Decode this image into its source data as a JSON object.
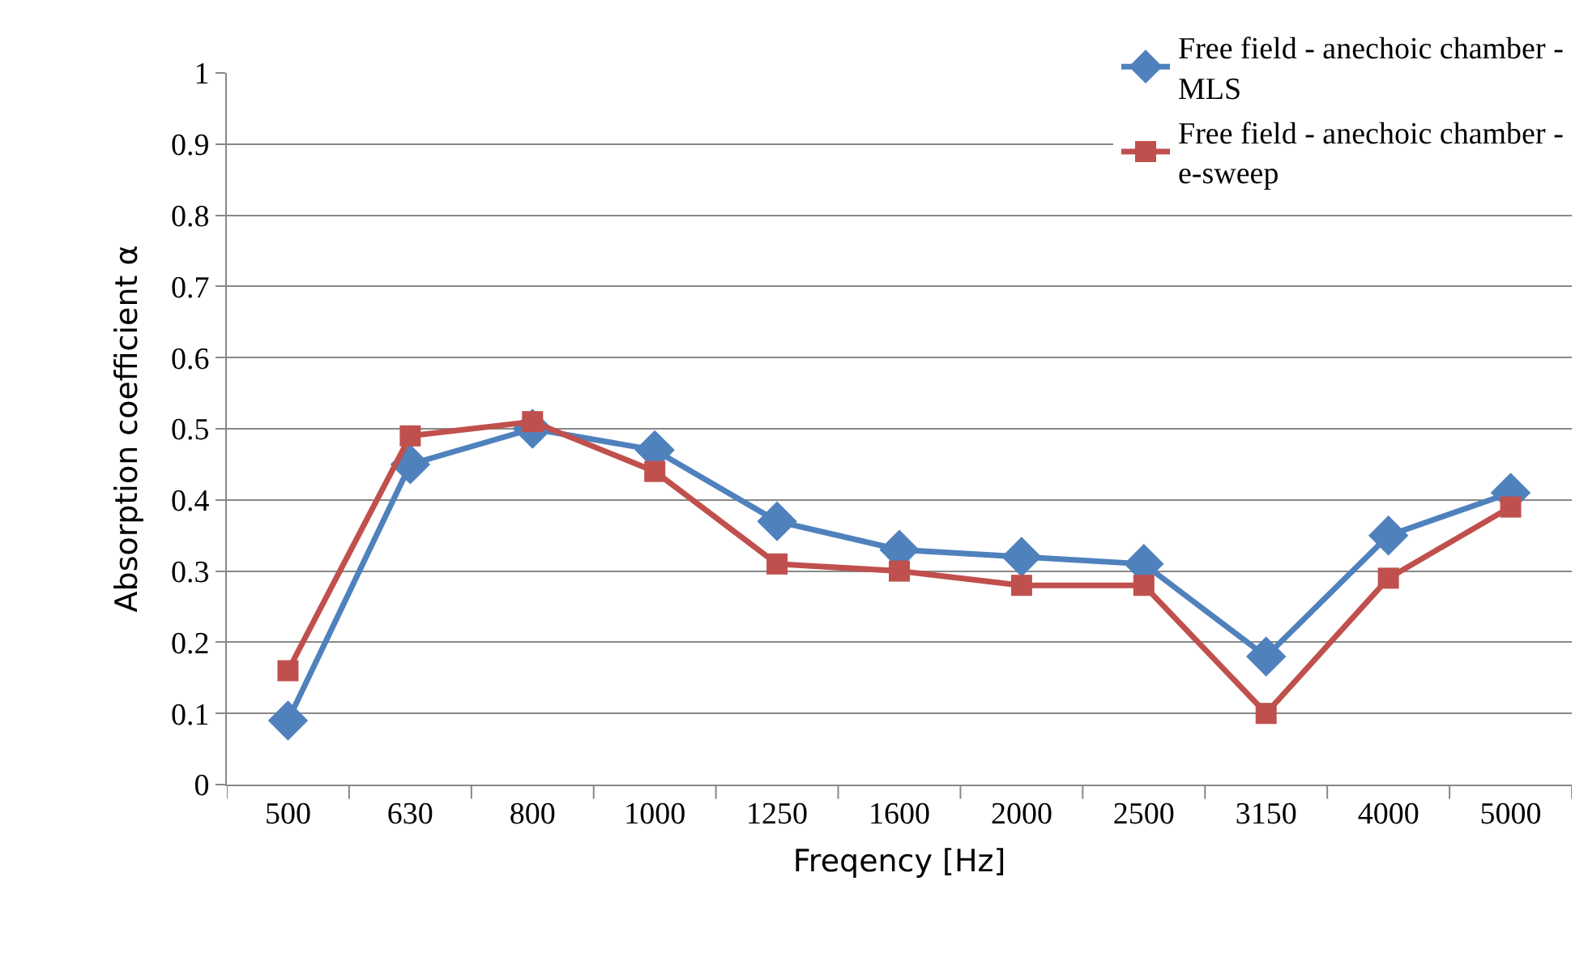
{
  "chart_data": {
    "type": "line",
    "xlabel": "Freqency [Hz]",
    "ylabel": "Absorption coefficient α",
    "categories": [
      "500",
      "630",
      "800",
      "1000",
      "1250",
      "1600",
      "2000",
      "2500",
      "3150",
      "4000",
      "5000"
    ],
    "series": [
      {
        "name": "Free field - anechoic chamber - MLS",
        "color": "#4f81bd",
        "marker": "diamond",
        "values": [
          0.09,
          0.45,
          0.5,
          0.47,
          0.37,
          0.33,
          0.32,
          0.31,
          0.18,
          0.35,
          0.41
        ]
      },
      {
        "name": "Free field - anechoic chamber - e-sweep",
        "color": "#c0504d",
        "marker": "square",
        "values": [
          0.16,
          0.49,
          0.51,
          0.44,
          0.31,
          0.3,
          0.28,
          0.28,
          0.1,
          0.29,
          0.39
        ]
      }
    ],
    "ylim": [
      0,
      1
    ],
    "yticks": [
      0,
      0.1,
      0.2,
      0.3,
      0.4,
      0.5,
      0.6,
      0.7,
      0.8,
      0.9,
      1
    ],
    "grid": "y",
    "legend": "top right",
    "line_style": "solid"
  }
}
